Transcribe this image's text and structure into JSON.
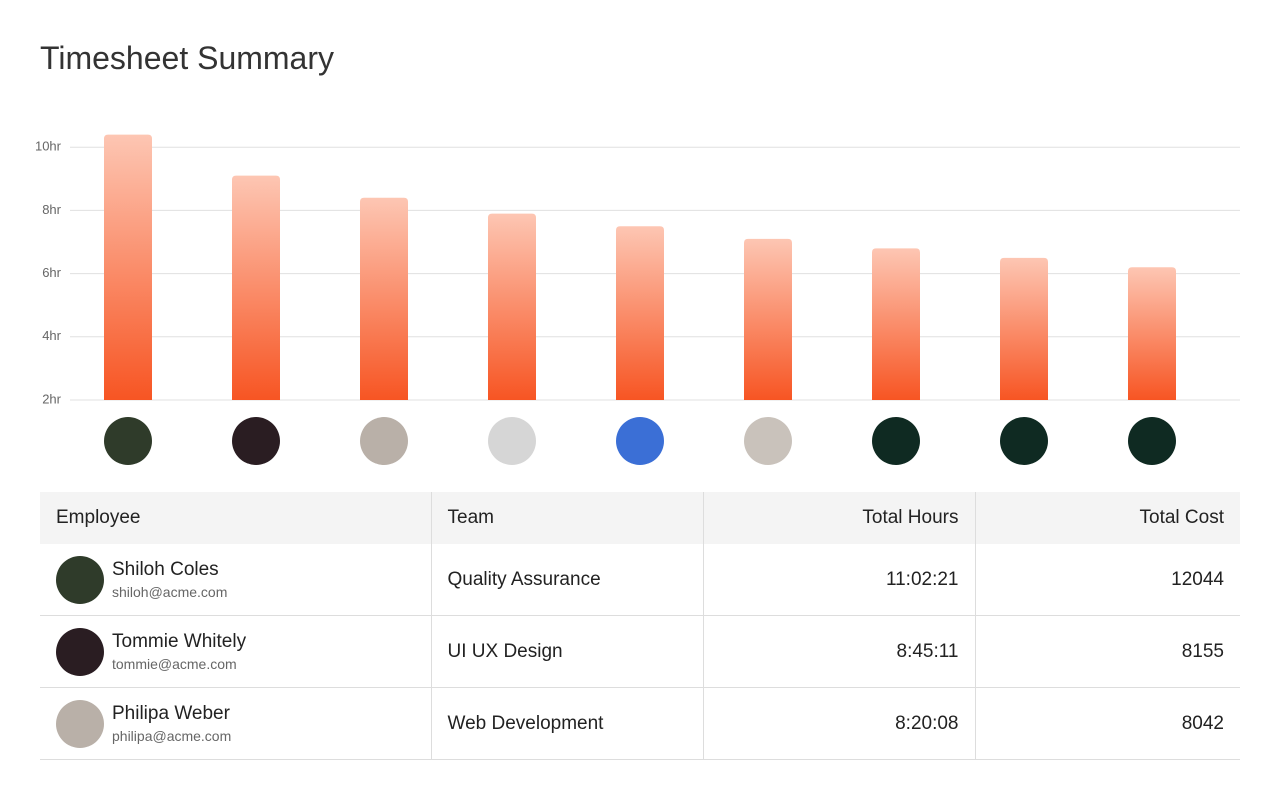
{
  "title": "Timesheet Summary",
  "chart_data": {
    "type": "bar",
    "categories": [
      null,
      null,
      null,
      null,
      null,
      null,
      null,
      null,
      null
    ],
    "values": [
      10.4,
      9.1,
      8.4,
      7.9,
      7.5,
      7.1,
      6.8,
      6.5,
      6.2
    ],
    "ylim": [
      2,
      10.4
    ],
    "yticks": [
      {
        "value": 2,
        "label": "2hr"
      },
      {
        "value": 4,
        "label": "4hr"
      },
      {
        "value": 6,
        "label": "6hr"
      },
      {
        "value": 8,
        "label": "8hr"
      },
      {
        "value": 10,
        "label": "10hr"
      }
    ],
    "grid": true,
    "color_top": "#fdc6b3",
    "color_bottom": "#f75523"
  },
  "table": {
    "columns": [
      "Employee",
      "Team",
      "Total Hours",
      "Total Cost"
    ],
    "rows": [
      {
        "name": "Shiloh Coles",
        "email": "shiloh@acme.com",
        "team": "Quality Assurance",
        "hours": "11:02:21",
        "cost": 12044
      },
      {
        "name": "Tommie Whitely",
        "email": "tommie@acme.com",
        "team": "UI UX Design",
        "hours": "8:45:11",
        "cost": 8155
      },
      {
        "name": "Philipa Weber",
        "email": "philipa@acme.com",
        "team": "Web Development",
        "hours": "8:20:08",
        "cost": 8042
      }
    ]
  }
}
